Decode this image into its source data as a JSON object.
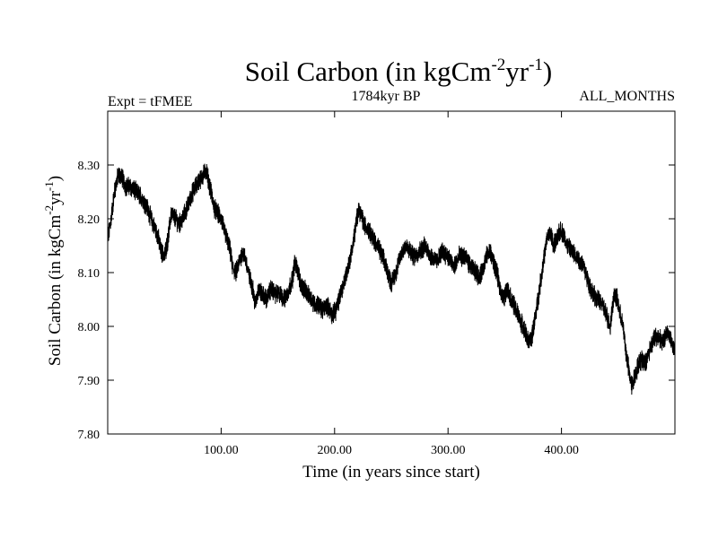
{
  "chart_data": {
    "type": "line",
    "title": {
      "main": "Soil Carbon (in kgCm",
      "sup1": "-2",
      "mid": "yr",
      "sup2": "-1",
      "end": ")"
    },
    "header_left": "Expt = tFMEE",
    "header_center": "1784kyr BP",
    "header_right": "ALL_MONTHS",
    "xlabel": "Time (in years since start)",
    "ylabel": {
      "main": "Soil Carbon (in kgCm",
      "sup1": "-2",
      "mid": "yr",
      "sup2": "-1",
      "end": ")"
    },
    "xlim": [
      0,
      500
    ],
    "ylim": [
      7.8,
      8.4
    ],
    "x_ticks": [
      100,
      200,
      300,
      400
    ],
    "x_tick_labels": [
      "100.00",
      "200.00",
      "300.00",
      "400.00"
    ],
    "y_ticks": [
      7.8,
      7.9,
      8.0,
      8.1,
      8.2,
      8.3
    ],
    "y_tick_labels": [
      "7.80",
      "7.90",
      "8.00",
      "8.10",
      "8.20",
      "8.30"
    ],
    "line_color": "#000000",
    "series": [
      {
        "name": "Soil Carbon",
        "x": [
          0,
          3,
          6,
          9,
          12,
          16,
          20,
          25,
          30,
          35,
          40,
          44,
          47,
          50,
          53,
          56,
          60,
          63,
          66,
          70,
          75,
          80,
          84,
          87,
          89,
          92,
          94,
          97,
          100,
          104,
          108,
          110,
          113,
          116,
          119,
          122,
          125,
          128,
          130,
          133,
          136,
          140,
          144,
          148,
          152,
          156,
          160,
          163,
          165,
          168,
          170,
          173,
          176,
          180,
          183,
          186,
          190,
          193,
          196,
          198,
          201,
          204,
          208,
          212,
          216,
          219,
          221,
          223,
          226,
          230,
          235,
          240,
          244,
          247,
          250,
          254,
          258,
          262,
          266,
          270,
          275,
          280,
          285,
          290,
          295,
          300,
          305,
          310,
          315,
          320,
          325,
          328,
          331,
          334,
          337,
          340,
          343,
          346,
          349,
          352,
          356,
          360,
          364,
          368,
          371,
          374,
          377,
          380,
          384,
          388,
          391,
          393,
          396,
          399,
          402,
          405,
          409,
          413,
          417,
          420,
          424,
          428,
          432,
          436,
          440,
          443,
          445,
          447,
          449,
          452,
          455,
          457,
          460,
          462,
          465,
          468,
          471,
          474,
          478,
          482,
          486,
          490,
          493,
          496,
          500
        ],
        "values": [
          8.16,
          8.2,
          8.25,
          8.28,
          8.28,
          8.26,
          8.26,
          8.25,
          8.24,
          8.22,
          8.19,
          8.17,
          8.14,
          8.13,
          8.16,
          8.21,
          8.2,
          8.19,
          8.2,
          8.22,
          8.25,
          8.27,
          8.28,
          8.29,
          8.27,
          8.24,
          8.22,
          8.21,
          8.2,
          8.17,
          8.14,
          8.11,
          8.1,
          8.12,
          8.14,
          8.12,
          8.09,
          8.07,
          8.04,
          8.07,
          8.06,
          8.05,
          8.07,
          8.06,
          8.06,
          8.05,
          8.07,
          8.09,
          8.12,
          8.1,
          8.08,
          8.07,
          8.06,
          8.05,
          8.04,
          8.04,
          8.03,
          8.04,
          8.03,
          8.02,
          8.03,
          8.05,
          8.08,
          8.11,
          8.15,
          8.19,
          8.22,
          8.21,
          8.19,
          8.18,
          8.16,
          8.14,
          8.12,
          8.1,
          8.08,
          8.1,
          8.13,
          8.15,
          8.14,
          8.13,
          8.14,
          8.15,
          8.13,
          8.12,
          8.14,
          8.13,
          8.11,
          8.13,
          8.13,
          8.11,
          8.1,
          8.09,
          8.11,
          8.13,
          8.14,
          8.12,
          8.1,
          8.07,
          8.05,
          8.07,
          8.05,
          8.03,
          8.01,
          7.99,
          7.97,
          7.98,
          8.02,
          8.06,
          8.12,
          8.17,
          8.17,
          8.15,
          8.16,
          8.18,
          8.17,
          8.15,
          8.14,
          8.13,
          8.12,
          8.11,
          8.08,
          8.06,
          8.05,
          8.04,
          8.02,
          8.0,
          8.04,
          8.06,
          8.05,
          8.02,
          7.99,
          7.95,
          7.91,
          7.89,
          7.91,
          7.93,
          7.94,
          7.93,
          7.96,
          7.98,
          7.98,
          7.97,
          7.99,
          7.98,
          7.95
        ]
      }
    ]
  }
}
